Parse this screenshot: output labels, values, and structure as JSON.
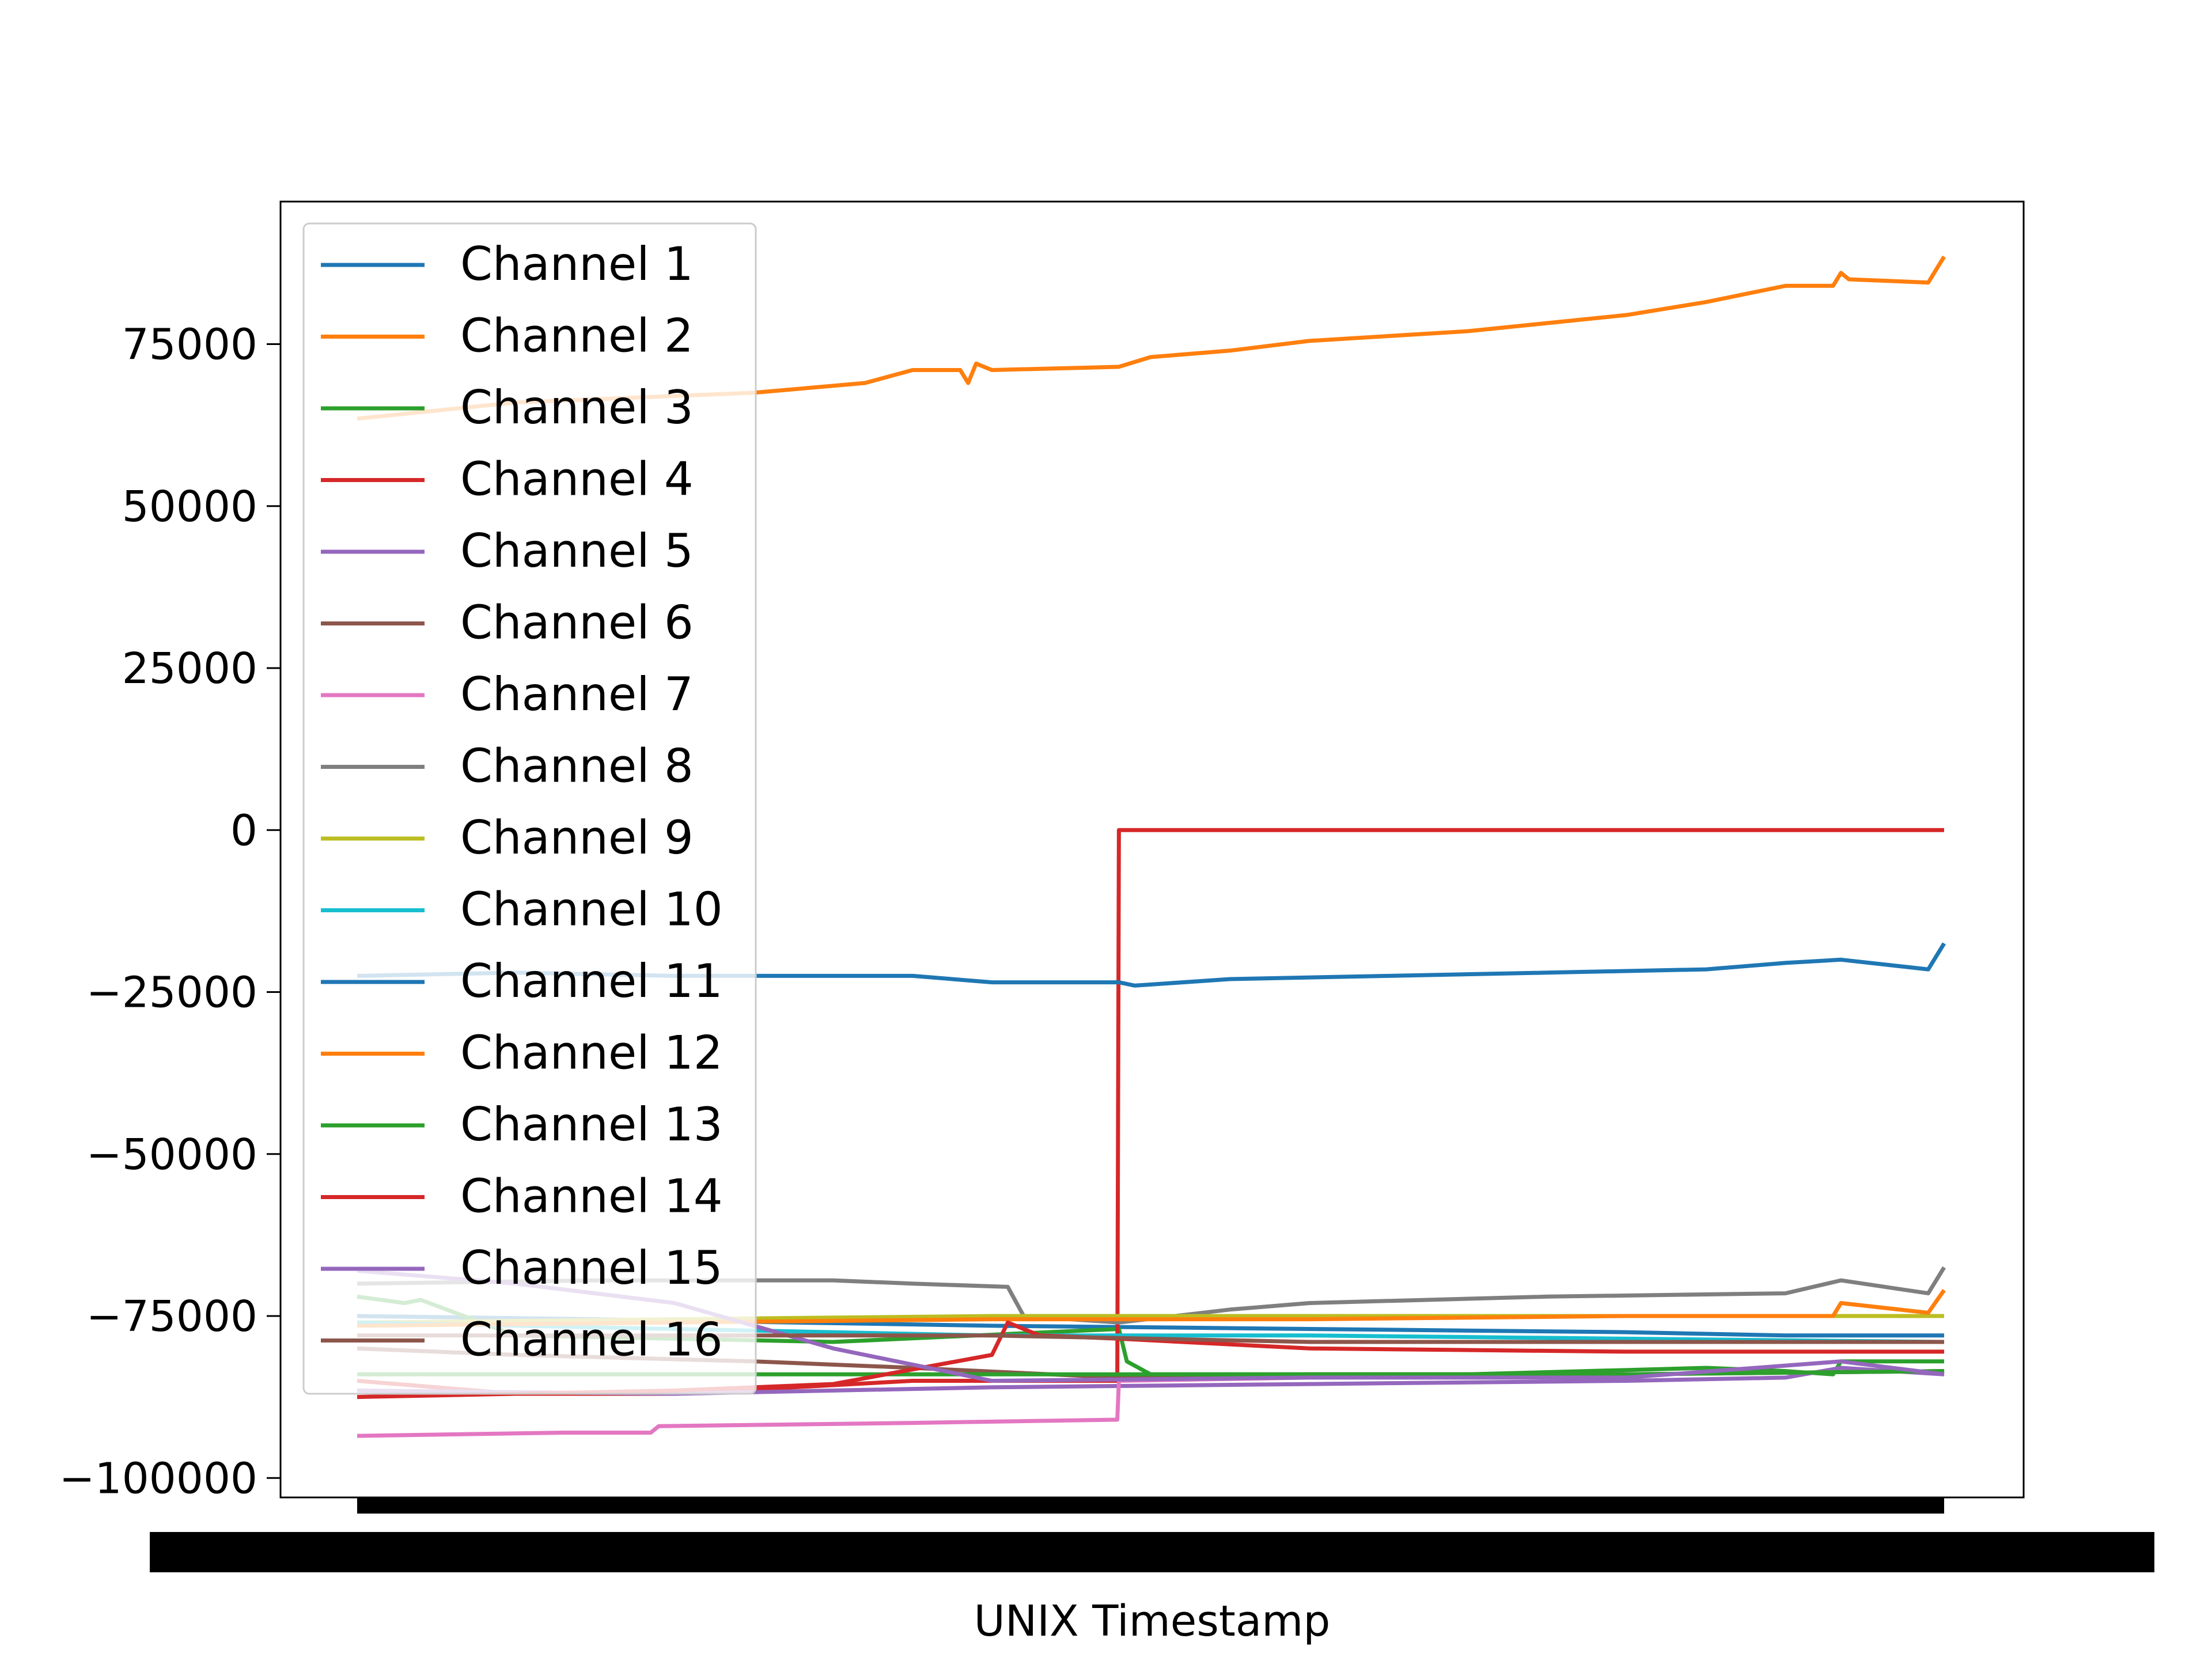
{
  "chart_data": {
    "type": "line",
    "title": "",
    "xlabel": "UNIX Timestamp",
    "ylabel": "",
    "ylim": [
      -103000,
      97000
    ],
    "yticks": [
      75000,
      50000,
      25000,
      0,
      -25000,
      -50000,
      -75000,
      -100000
    ],
    "ytick_labels": [
      "75000",
      "50000",
      "25000",
      "0",
      "−25000",
      "−50000",
      "−75000",
      "−100000"
    ],
    "x_domain": [
      0,
      1
    ],
    "grid": false,
    "legend_position": "upper left",
    "series": [
      {
        "name": "Channel 1",
        "color": "#1f77b4",
        "points": [
          [
            0,
            -75000
          ],
          [
            0.15,
            -75500
          ],
          [
            0.4,
            -76500
          ],
          [
            0.6,
            -77000
          ],
          [
            0.8,
            -77500
          ],
          [
            0.9,
            -78000
          ],
          [
            1,
            -78000
          ]
        ]
      },
      {
        "name": "Channel 2",
        "color": "#ff7f0e",
        "points": [
          [
            0,
            63500
          ],
          [
            0.1,
            66000
          ],
          [
            0.25,
            67500
          ],
          [
            0.32,
            69000
          ],
          [
            0.35,
            71000
          ],
          [
            0.38,
            71000
          ],
          [
            0.385,
            69000
          ],
          [
            0.39,
            72000
          ],
          [
            0.4,
            71000
          ],
          [
            0.48,
            71500
          ],
          [
            0.5,
            73000
          ],
          [
            0.55,
            74000
          ],
          [
            0.6,
            75500
          ],
          [
            0.7,
            77000
          ],
          [
            0.72,
            77500
          ],
          [
            0.8,
            79500
          ],
          [
            0.85,
            81500
          ],
          [
            0.9,
            84000
          ],
          [
            0.93,
            84000
          ],
          [
            0.935,
            86000
          ],
          [
            0.94,
            85000
          ],
          [
            0.99,
            84500
          ],
          [
            1,
            88500
          ]
        ]
      },
      {
        "name": "Channel 3",
        "color": "#2ca02c",
        "points": [
          [
            0,
            -72000
          ],
          [
            0.03,
            -73000
          ],
          [
            0.04,
            -72500
          ],
          [
            0.1,
            -78000
          ],
          [
            0.3,
            -79000
          ],
          [
            0.48,
            -77000
          ],
          [
            0.485,
            -82000
          ],
          [
            0.5,
            -84000
          ],
          [
            0.7,
            -84000
          ],
          [
            0.85,
            -83000
          ],
          [
            0.9,
            -83500
          ],
          [
            0.93,
            -84000
          ],
          [
            0.935,
            -82000
          ],
          [
            0.99,
            -82000
          ],
          [
            1,
            -82000
          ]
        ]
      },
      {
        "name": "Channel 4",
        "color": "#d62728",
        "points": [
          [
            0,
            -85000
          ],
          [
            0.1,
            -87000
          ],
          [
            0.2,
            -87000
          ],
          [
            0.35,
            -85000
          ],
          [
            0.479,
            -85000
          ],
          [
            0.48,
            0
          ],
          [
            1,
            0
          ]
        ]
      },
      {
        "name": "Channel 5",
        "color": "#9467bd",
        "points": [
          [
            0,
            -86500
          ],
          [
            0.2,
            -87000
          ],
          [
            0.4,
            -86000
          ],
          [
            0.6,
            -85500
          ],
          [
            0.8,
            -85000
          ],
          [
            0.9,
            -84500
          ],
          [
            0.935,
            -83000
          ],
          [
            1,
            -84000
          ]
        ]
      },
      {
        "name": "Channel 6",
        "color": "#8c564b",
        "points": [
          [
            0,
            -80000
          ],
          [
            0.1,
            -81000
          ],
          [
            0.25,
            -82000
          ],
          [
            0.35,
            -83000
          ],
          [
            0.48,
            -84500
          ],
          [
            0.6,
            -84000
          ],
          [
            0.8,
            -84000
          ],
          [
            1,
            -83500
          ]
        ]
      },
      {
        "name": "Channel 7",
        "color": "#e377c2",
        "points": [
          [
            0,
            -93500
          ],
          [
            0.13,
            -93000
          ],
          [
            0.185,
            -93000
          ],
          [
            0.19,
            -92000
          ],
          [
            0.35,
            -91500
          ],
          [
            0.479,
            -91000
          ],
          [
            0.48,
            -85000
          ],
          [
            0.6,
            -84500
          ],
          [
            0.8,
            -84000
          ],
          [
            1,
            -83500
          ]
        ]
      },
      {
        "name": "Channel 8",
        "color": "#7f7f7f",
        "points": [
          [
            0,
            -70000
          ],
          [
            0.15,
            -69500
          ],
          [
            0.3,
            -69500
          ],
          [
            0.35,
            -70000
          ],
          [
            0.41,
            -70500
          ],
          [
            0.42,
            -75000
          ],
          [
            0.48,
            -76000
          ],
          [
            0.55,
            -74000
          ],
          [
            0.6,
            -73000
          ],
          [
            0.75,
            -72000
          ],
          [
            0.9,
            -71500
          ],
          [
            0.935,
            -69500
          ],
          [
            0.99,
            -71500
          ],
          [
            1,
            -67500
          ]
        ]
      },
      {
        "name": "Channel 9",
        "color": "#bcbd22",
        "points": [
          [
            0,
            -76000
          ],
          [
            0.2,
            -75500
          ],
          [
            0.4,
            -75000
          ],
          [
            0.6,
            -75000
          ],
          [
            0.8,
            -75000
          ],
          [
            1,
            -75000
          ]
        ]
      },
      {
        "name": "Channel 10",
        "color": "#17becf",
        "points": [
          [
            0,
            -76000
          ],
          [
            0.2,
            -77000
          ],
          [
            0.4,
            -78000
          ],
          [
            0.6,
            -78000
          ],
          [
            0.8,
            -78500
          ],
          [
            1,
            -79000
          ]
        ]
      },
      {
        "name": "Channel 11",
        "color": "#1f77b4",
        "points": [
          [
            0,
            -22500
          ],
          [
            0.1,
            -22000
          ],
          [
            0.2,
            -22500
          ],
          [
            0.35,
            -22500
          ],
          [
            0.4,
            -23500
          ],
          [
            0.48,
            -23500
          ],
          [
            0.49,
            -24000
          ],
          [
            0.55,
            -23000
          ],
          [
            0.65,
            -22500
          ],
          [
            0.75,
            -22000
          ],
          [
            0.85,
            -21500
          ],
          [
            0.9,
            -20500
          ],
          [
            0.935,
            -20000
          ],
          [
            0.99,
            -21500
          ],
          [
            1,
            -17500
          ]
        ]
      },
      {
        "name": "Channel 12",
        "color": "#ff7f0e",
        "points": [
          [
            0,
            -76500
          ],
          [
            0.2,
            -76000
          ],
          [
            0.4,
            -75500
          ],
          [
            0.6,
            -75500
          ],
          [
            0.8,
            -75000
          ],
          [
            0.93,
            -75000
          ],
          [
            0.935,
            -73000
          ],
          [
            0.99,
            -74500
          ],
          [
            1,
            -71000
          ]
        ]
      },
      {
        "name": "Channel 13",
        "color": "#2ca02c",
        "points": [
          [
            0,
            -84000
          ],
          [
            0.2,
            -84000
          ],
          [
            0.4,
            -84000
          ],
          [
            0.6,
            -84000
          ],
          [
            0.8,
            -84000
          ],
          [
            1,
            -83500
          ]
        ]
      },
      {
        "name": "Channel 14",
        "color": "#d62728",
        "points": [
          [
            0,
            -87500
          ],
          [
            0.1,
            -87000
          ],
          [
            0.2,
            -86500
          ],
          [
            0.3,
            -85500
          ],
          [
            0.4,
            -81000
          ],
          [
            0.41,
            -76000
          ],
          [
            0.43,
            -78000
          ],
          [
            0.48,
            -78500
          ],
          [
            0.6,
            -80000
          ],
          [
            0.8,
            -80500
          ],
          [
            1,
            -80500
          ]
        ]
      },
      {
        "name": "Channel 15",
        "color": "#9467bd",
        "points": [
          [
            0,
            -68000
          ],
          [
            0.1,
            -70000
          ],
          [
            0.2,
            -73000
          ],
          [
            0.3,
            -80000
          ],
          [
            0.4,
            -85000
          ],
          [
            0.6,
            -84500
          ],
          [
            0.8,
            -84500
          ],
          [
            0.935,
            -82000
          ],
          [
            1,
            -84000
          ]
        ]
      },
      {
        "name": "Channel 16",
        "color": "#8c564b",
        "points": [
          [
            0,
            -78000
          ],
          [
            0.2,
            -78000
          ],
          [
            0.4,
            -78000
          ],
          [
            0.6,
            -79000
          ],
          [
            0.8,
            -79000
          ],
          [
            1,
            -79000
          ]
        ]
      }
    ]
  }
}
